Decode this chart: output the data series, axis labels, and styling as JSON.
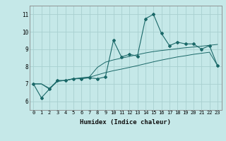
{
  "xlabel": "Humidex (Indice chaleur)",
  "ylabel": "",
  "xlim": [
    -0.5,
    23.5
  ],
  "ylim": [
    5.5,
    11.5
  ],
  "yticks": [
    6,
    7,
    8,
    9,
    10,
    11
  ],
  "xticks": [
    0,
    1,
    2,
    3,
    4,
    5,
    6,
    7,
    8,
    9,
    10,
    11,
    12,
    13,
    14,
    15,
    16,
    17,
    18,
    19,
    20,
    21,
    22,
    23
  ],
  "background_color": "#c5e8e8",
  "grid_color": "#a8d0d0",
  "line_color": "#1a6868",
  "series": [
    [
      7.0,
      6.2,
      6.7,
      7.2,
      7.2,
      7.3,
      7.3,
      7.35,
      7.3,
      7.4,
      9.5,
      8.55,
      8.7,
      8.6,
      10.75,
      11.0,
      9.9,
      9.2,
      9.4,
      9.3,
      9.3,
      9.0,
      9.2,
      8.05
    ],
    [
      7.0,
      7.0,
      6.7,
      7.15,
      7.2,
      7.3,
      7.35,
      7.4,
      7.95,
      8.25,
      8.38,
      8.48,
      8.58,
      8.68,
      8.78,
      8.86,
      8.92,
      8.97,
      9.03,
      9.08,
      9.12,
      9.17,
      9.22,
      9.27
    ],
    [
      7.0,
      7.0,
      6.75,
      7.15,
      7.2,
      7.28,
      7.33,
      7.38,
      7.52,
      7.65,
      7.76,
      7.85,
      7.95,
      8.05,
      8.16,
      8.27,
      8.37,
      8.46,
      8.55,
      8.62,
      8.7,
      8.76,
      8.82,
      8.05
    ]
  ]
}
